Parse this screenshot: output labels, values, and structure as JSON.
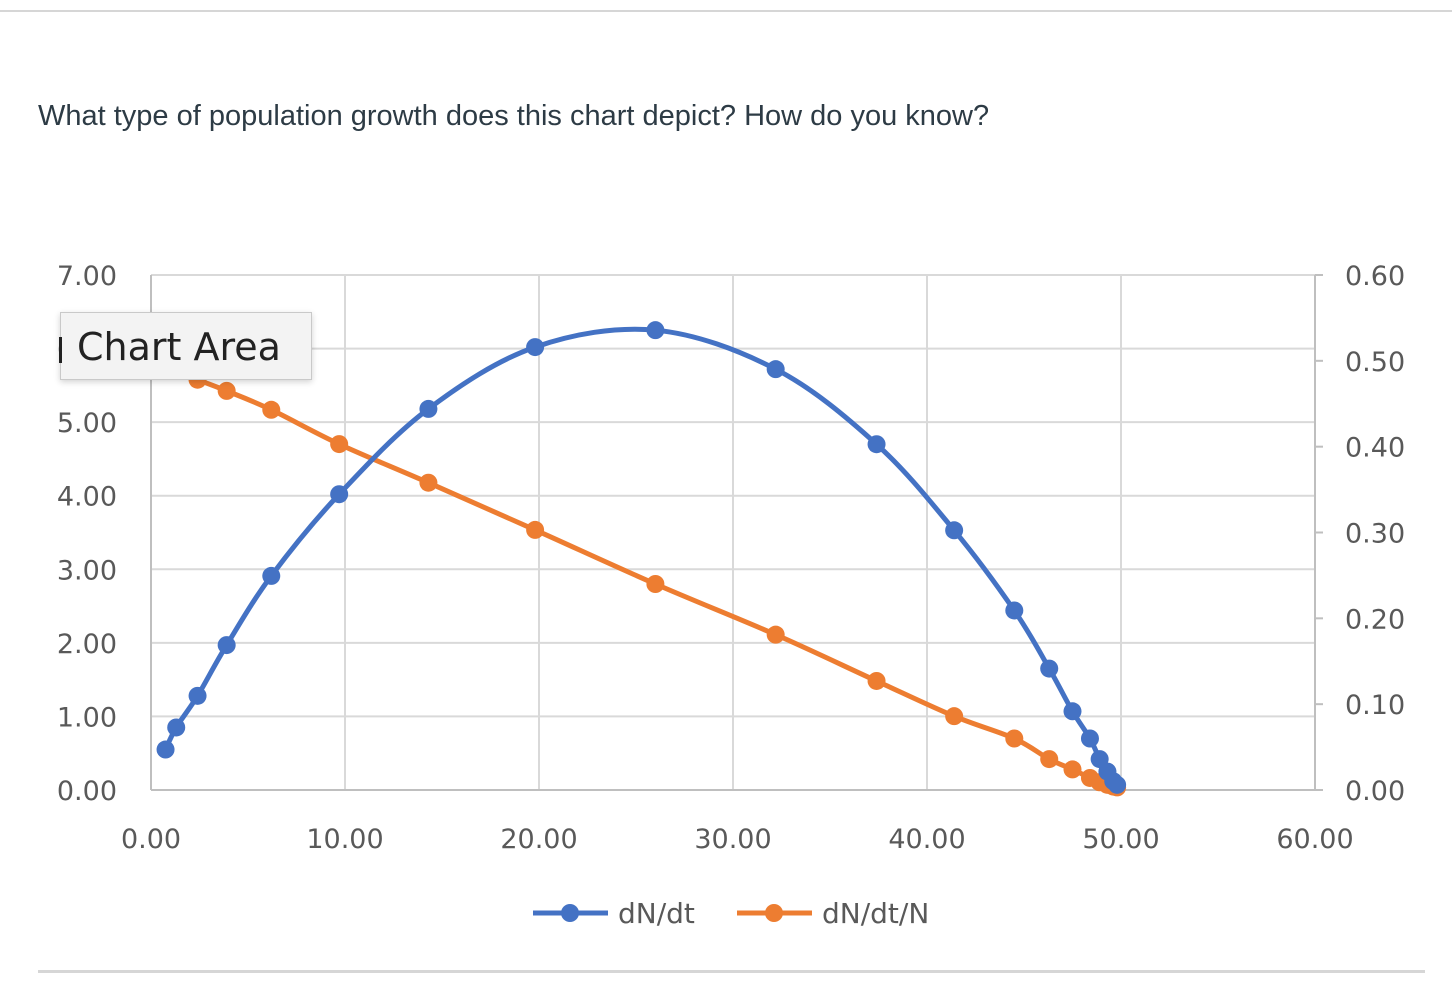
{
  "question": "What type of population growth does this chart depict?  How do you know?",
  "tooltip": "Chart Area",
  "chart_data": {
    "type": "line",
    "title": "",
    "xlabel": "",
    "ylabel": "",
    "xlim": [
      0,
      60
    ],
    "ylim": [
      0,
      7
    ],
    "y2lim": [
      0,
      0.6
    ],
    "x_ticks": [
      "0.00",
      "10.00",
      "20.00",
      "30.00",
      "40.00",
      "50.00",
      "60.00"
    ],
    "y_ticks": [
      "0.00",
      "1.00",
      "2.00",
      "3.00",
      "4.00",
      "5.00",
      "6.00",
      "7.00"
    ],
    "y2_ticks": [
      "0.00",
      "0.10",
      "0.20",
      "0.30",
      "0.40",
      "0.50",
      "0.60"
    ],
    "grid": true,
    "legend_position": "bottom",
    "series": [
      {
        "name": "dN/dt",
        "axis": "left",
        "color": "#4472c4",
        "points": [
          [
            0.75,
            0.55
          ],
          [
            1.3,
            0.85
          ],
          [
            2.4,
            1.28
          ],
          [
            3.9,
            1.97
          ],
          [
            6.2,
            2.91
          ],
          [
            9.7,
            4.02
          ],
          [
            14.3,
            5.18
          ],
          [
            19.8,
            6.02
          ],
          [
            26.0,
            6.25
          ],
          [
            32.2,
            5.72
          ],
          [
            37.4,
            4.7
          ],
          [
            41.4,
            3.53
          ],
          [
            44.5,
            2.44
          ],
          [
            46.3,
            1.65
          ],
          [
            47.5,
            1.07
          ],
          [
            48.4,
            0.7
          ],
          [
            48.9,
            0.42
          ],
          [
            49.3,
            0.25
          ],
          [
            49.6,
            0.12
          ],
          [
            49.8,
            0.07
          ]
        ]
      },
      {
        "name": "dN/dt/N",
        "axis": "right",
        "color": "#ed7d31",
        "points": [
          [
            2.4,
            0.478
          ],
          [
            3.9,
            0.465
          ],
          [
            6.2,
            0.443
          ],
          [
            9.7,
            0.403
          ],
          [
            14.3,
            0.358
          ],
          [
            19.8,
            0.303
          ],
          [
            26.0,
            0.24
          ],
          [
            32.2,
            0.181
          ],
          [
            37.4,
            0.127
          ],
          [
            41.4,
            0.086
          ],
          [
            44.5,
            0.06
          ],
          [
            46.3,
            0.036
          ],
          [
            47.5,
            0.024
          ],
          [
            48.4,
            0.014
          ],
          [
            48.9,
            0.009
          ],
          [
            49.3,
            0.006
          ],
          [
            49.6,
            0.004
          ],
          [
            49.8,
            0.003
          ]
        ]
      }
    ]
  }
}
